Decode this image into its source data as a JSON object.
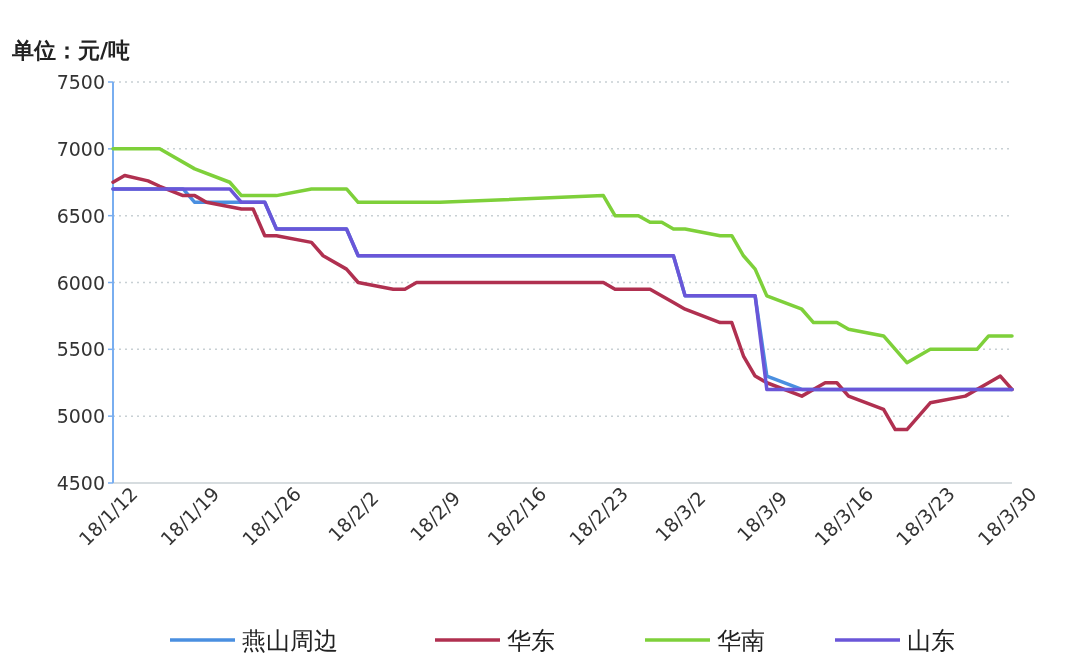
{
  "chart_data": {
    "type": "line",
    "ylabel": "单位：元/吨",
    "xlim": [
      "--01-12",
      "--03-30"
    ],
    "ylim": [
      4500,
      7500
    ],
    "yticks": [
      4500,
      5000,
      5500,
      6000,
      6500,
      7000,
      7500
    ],
    "xticks": [
      {
        "value": "--01-12",
        "label": "18/1/12"
      },
      {
        "value": "--01-19",
        "label": "18/1/19"
      },
      {
        "value": "--01-26",
        "label": "18/1/26"
      },
      {
        "value": "--02-02",
        "label": "18/2/2"
      },
      {
        "value": "--02-09",
        "label": "18/2/9"
      },
      {
        "value": "--02-16",
        "label": "18/2/16"
      },
      {
        "value": "--02-23",
        "label": "18/2/23"
      },
      {
        "value": "--03-02",
        "label": "18/3/2"
      },
      {
        "value": "--03-09",
        "label": "18/3/9"
      },
      {
        "value": "--03-16",
        "label": "18/3/16"
      },
      {
        "value": "--03-23",
        "label": "18/3/23"
      },
      {
        "value": "--03-30",
        "label": "18/3/30"
      }
    ],
    "grid": "y",
    "legend": "bottom",
    "marker": "none",
    "line_style": "solid",
    "series": [
      {
        "name": "燕山周边",
        "color": "#4a8fe0",
        "x": [
          "--01-12",
          "--01-18",
          "--01-19",
          "--01-25",
          "--01-26",
          "--02-01",
          "--02-02",
          "--03-01",
          "--03-02",
          "--03-08",
          "--03-09",
          "--03-12",
          "--03-30"
        ],
        "values": [
          6700,
          6700,
          6600,
          6600,
          6400,
          6400,
          6200,
          6200,
          5900,
          5900,
          5300,
          5200,
          5200
        ]
      },
      {
        "name": "华东",
        "color": "#b03050",
        "x": [
          "--01-12",
          "--01-13",
          "--01-15",
          "--01-16",
          "--01-18",
          "--01-19",
          "--01-20",
          "--01-23",
          "--01-24",
          "--01-25",
          "--01-26",
          "--01-29",
          "--01-30",
          "--02-01",
          "--02-02",
          "--02-05",
          "--02-06",
          "--02-07",
          "--02-23",
          "--02-24",
          "--02-27",
          "--03-01",
          "--03-02",
          "--03-05",
          "--03-06",
          "--03-07",
          "--03-08",
          "--03-09",
          "--03-12",
          "--03-14",
          "--03-15",
          "--03-16",
          "--03-19",
          "--03-20",
          "--03-21",
          "--03-23",
          "--03-26",
          "--03-28",
          "--03-29",
          "--03-30"
        ],
        "values": [
          6750,
          6800,
          6760,
          6720,
          6650,
          6650,
          6600,
          6550,
          6550,
          6350,
          6350,
          6300,
          6200,
          6100,
          6000,
          5950,
          5950,
          6000,
          6000,
          5950,
          5950,
          5850,
          5800,
          5700,
          5700,
          5450,
          5300,
          5250,
          5150,
          5250,
          5250,
          5150,
          5050,
          4900,
          4900,
          5100,
          5150,
          5250,
          5300,
          5200
        ]
      },
      {
        "name": "华南",
        "color": "#7ed03a",
        "x": [
          "--01-12",
          "--01-16",
          "--01-19",
          "--01-22",
          "--01-23",
          "--01-26",
          "--01-29",
          "--02-01",
          "--02-02",
          "--02-09",
          "--02-23",
          "--02-24",
          "--02-26",
          "--02-27",
          "--02-28",
          "--03-01",
          "--03-02",
          "--03-05",
          "--03-06",
          "--03-07",
          "--03-08",
          "--03-09",
          "--03-12",
          "--03-13",
          "--03-15",
          "--03-16",
          "--03-19",
          "--03-21",
          "--03-23",
          "--03-27",
          "--03-28",
          "--03-30"
        ],
        "values": [
          7000,
          7000,
          6850,
          6750,
          6650,
          6650,
          6700,
          6700,
          6600,
          6600,
          6650,
          6500,
          6500,
          6450,
          6450,
          6400,
          6400,
          6350,
          6350,
          6200,
          6100,
          5900,
          5800,
          5700,
          5700,
          5650,
          5600,
          5400,
          5500,
          5500,
          5600,
          5600
        ]
      },
      {
        "name": "山东",
        "color": "#6a56d8",
        "x": [
          "--01-12",
          "--01-22",
          "--01-23",
          "--01-25",
          "--01-26",
          "--02-01",
          "--02-02",
          "--03-01",
          "--03-02",
          "--03-08",
          "--03-09",
          "--03-30"
        ],
        "values": [
          6700,
          6700,
          6600,
          6600,
          6400,
          6400,
          6200,
          6200,
          5900,
          5900,
          5200,
          5200
        ]
      }
    ]
  }
}
